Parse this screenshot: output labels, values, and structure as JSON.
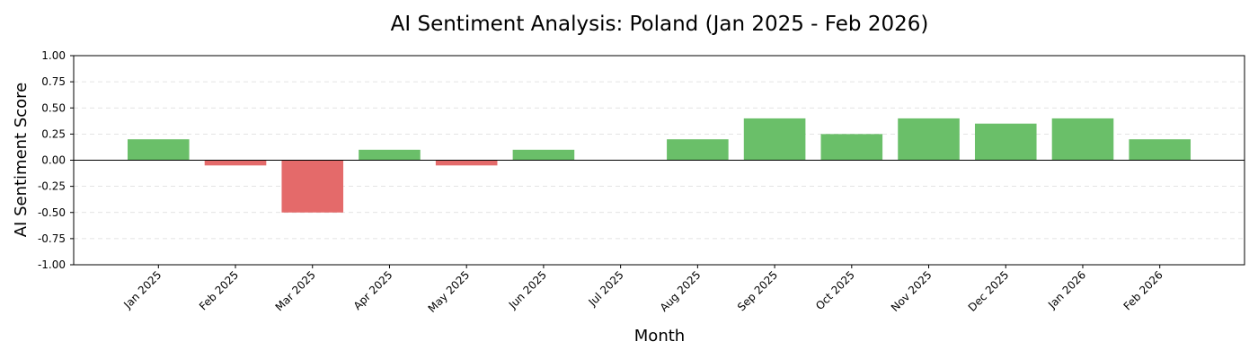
{
  "chart_data": {
    "type": "bar",
    "title": "AI Sentiment Analysis: Poland (Jan 2025 - Feb 2026)",
    "xlabel": "Month",
    "ylabel": "AI Sentiment Score",
    "ylim": [
      -1.0,
      1.0
    ],
    "yticks": [
      1.0,
      0.75,
      0.5,
      0.25,
      0.0,
      -0.25,
      -0.5,
      -0.75,
      -1.0
    ],
    "ytick_labels": [
      "1.00",
      "0.75",
      "0.50",
      "0.25",
      "0.00",
      "-0.25",
      "-0.50",
      "-0.75",
      "-1.00"
    ],
    "categories": [
      "Jan 2025",
      "Feb 2025",
      "Mar 2025",
      "Apr 2025",
      "May 2025",
      "Jun 2025",
      "Jul 2025",
      "Aug 2025",
      "Sep 2025",
      "Oct 2025",
      "Nov 2025",
      "Dec 2025",
      "Jan 2026",
      "Feb 2026"
    ],
    "values": [
      0.2,
      -0.05,
      -0.5,
      0.1,
      -0.05,
      0.1,
      0.0,
      0.2,
      0.4,
      0.25,
      0.4,
      0.35,
      0.4,
      0.2
    ],
    "grid": "y-dashed",
    "colors": {
      "positive": "#6abf69",
      "negative": "#e46a6a"
    }
  }
}
